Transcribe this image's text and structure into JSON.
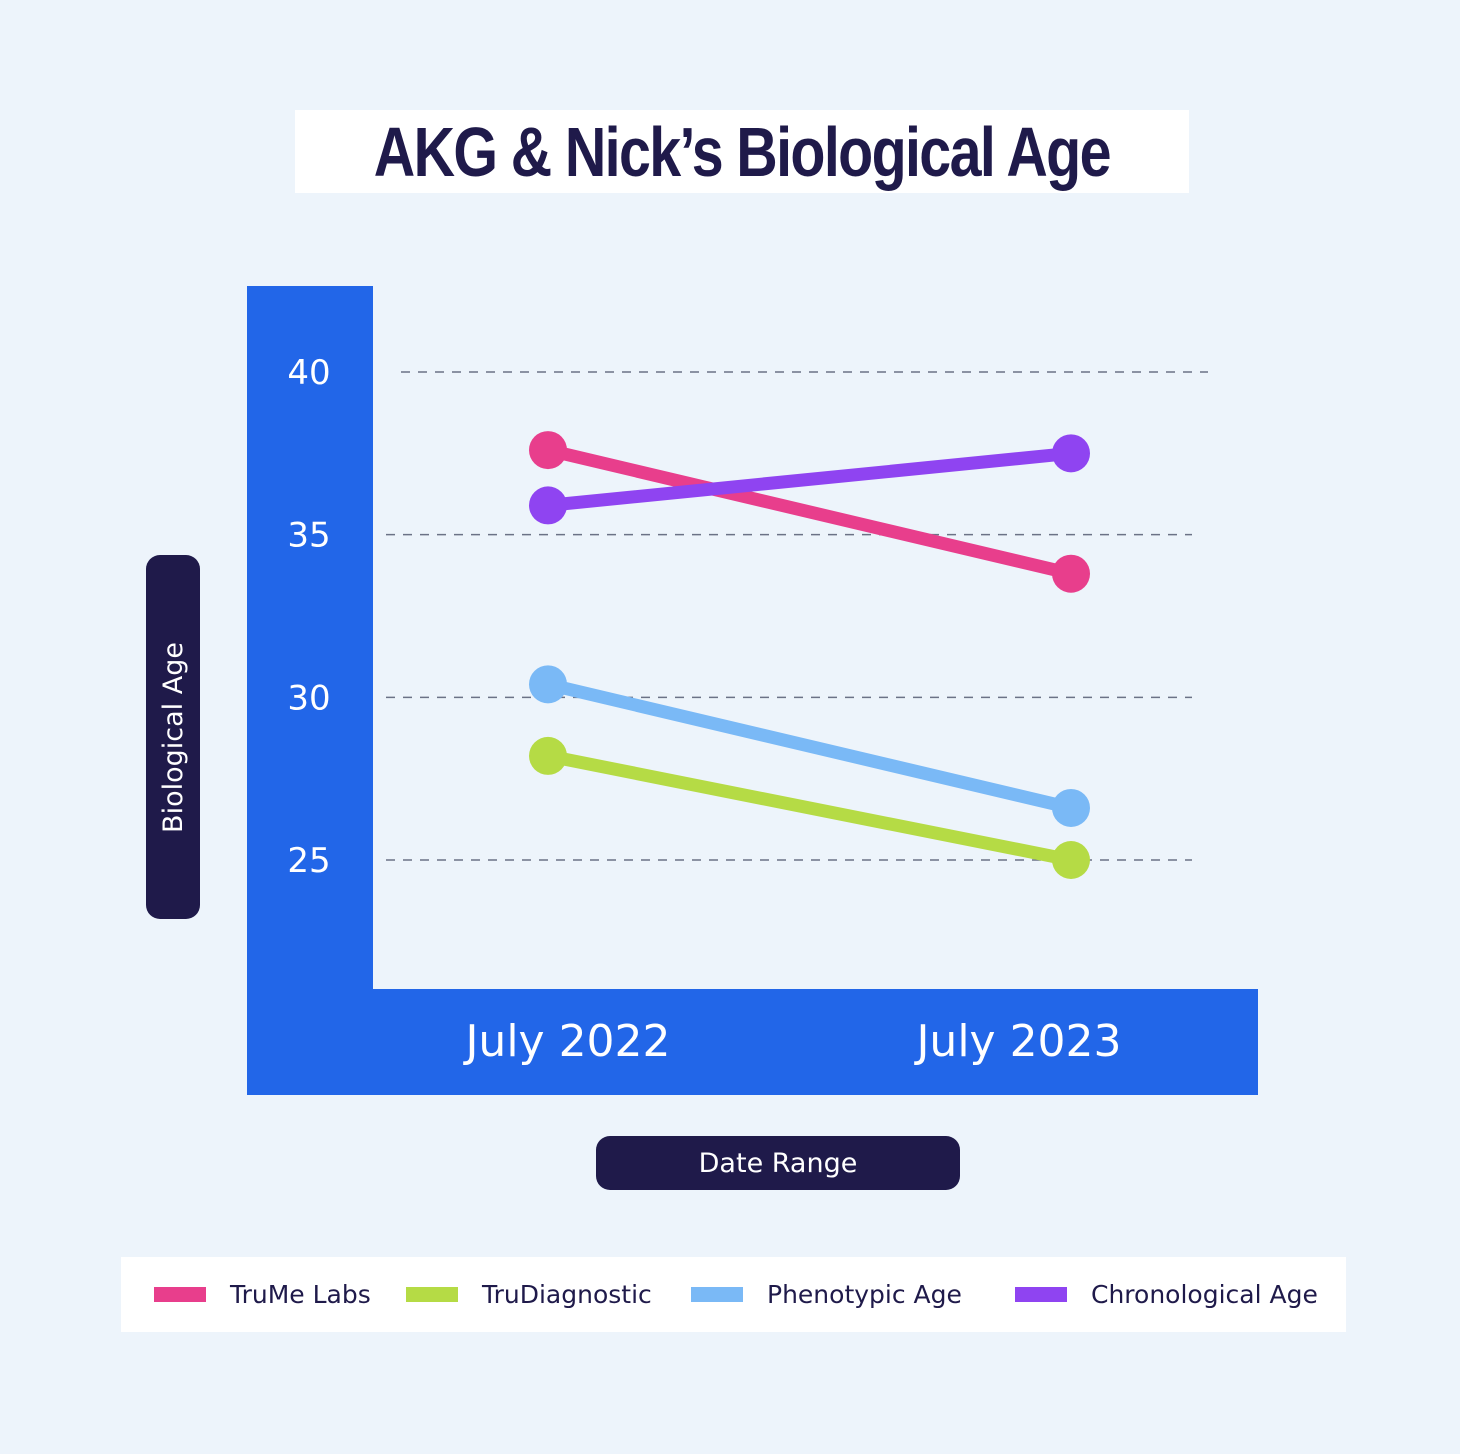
{
  "title": "AKG & Nick’s Biological Age",
  "chart_data": {
    "type": "line",
    "title": "AKG & Nick’s Biological Age",
    "xlabel": "Date Range",
    "ylabel": "Biological Age",
    "categories": [
      "July 2022",
      "July 2023"
    ],
    "yticks": [
      40,
      35,
      30,
      25
    ],
    "grid": true,
    "legend_position": "bottom",
    "series": [
      {
        "name": "TruMe Labs",
        "color": "#e83e8c",
        "values": [
          37.6,
          33.8
        ]
      },
      {
        "name": "TruDiagnostic",
        "color": "#b5db45",
        "values": [
          28.2,
          25.0
        ]
      },
      {
        "name": "Phenotypic Age",
        "color": "#7ab9f6",
        "values": [
          30.4,
          26.6
        ]
      },
      {
        "name": "Chronological Age",
        "color": "#8f44f1",
        "values": [
          35.9,
          37.5
        ]
      }
    ]
  },
  "colors": {
    "background": "#edf4fb",
    "axis_band": "#2266e8",
    "label_pill": "#1f1a4a",
    "grid": "#6b7286"
  }
}
